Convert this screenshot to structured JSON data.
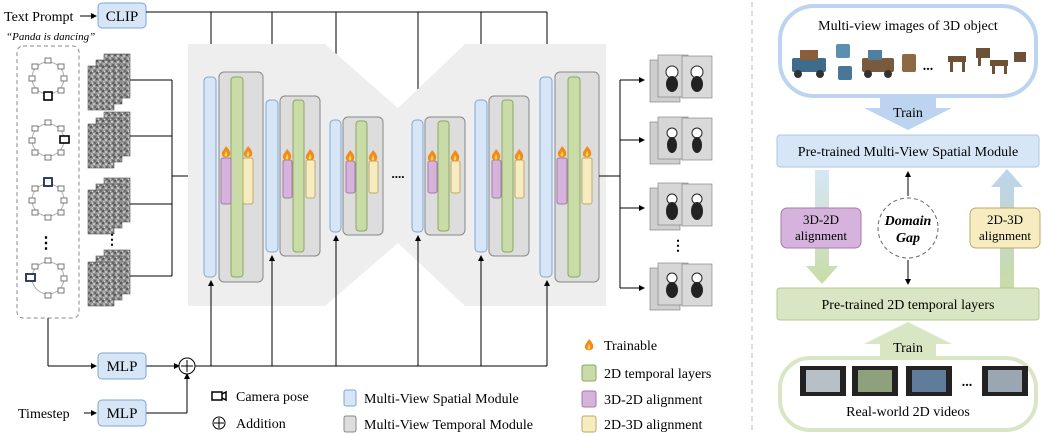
{
  "left_pipeline": {
    "text_prompt_label": "Text Prompt",
    "prompt_example": "“Panda is dancing”",
    "clip_label": "CLIP",
    "mlp_label_camera": "MLP",
    "mlp_label_timestep": "MLP",
    "timestep_label": "Timestep",
    "ellipsis_between_blocks": "....",
    "vertical_ellipsis": "⋮",
    "noise_ellipsis": "...",
    "addition_symbol": "⊕"
  },
  "legend": {
    "camera_pose": "Camera pose",
    "addition": "Addition",
    "trainable": "Trainable",
    "mv_spatial": "Multi-View Spatial Module",
    "mv_temporal": "Multi-View Temporal Module",
    "temporal_2d": "2D temporal layers",
    "align_3d_2d": "3D-2D alignment",
    "align_2d_3d": "2D-3D alignment"
  },
  "right_panel": {
    "multiview_title": "Multi-view images of 3D object",
    "train_label_top": "Train",
    "spatial_module": "Pre-trained Multi-View Spatial Module",
    "align_3d2d_line1": "3D-2D",
    "align_3d2d_line2": "alignment",
    "domain_gap_line1": "Domain",
    "domain_gap_line2": "Gap",
    "align_2d3d_line1": "2D-3D",
    "align_2d3d_line2": "alignment",
    "temporal_layers": "Pre-trained 2D temporal layers",
    "train_label_bottom": "Train",
    "videos_title": "Real-world 2D videos",
    "ellipsis": "..."
  },
  "colors": {
    "spatial_blue": "#d6e6f7",
    "spatial_blue_stroke": "#7ea7d2",
    "temporal_gray": "#dddddd",
    "temporal_green": "#c9dca7",
    "align_purple": "#d6b3dc",
    "align_yellow": "#f6ecc0",
    "flame": "#f28a1a",
    "unet_bg": "#eeeeee"
  }
}
